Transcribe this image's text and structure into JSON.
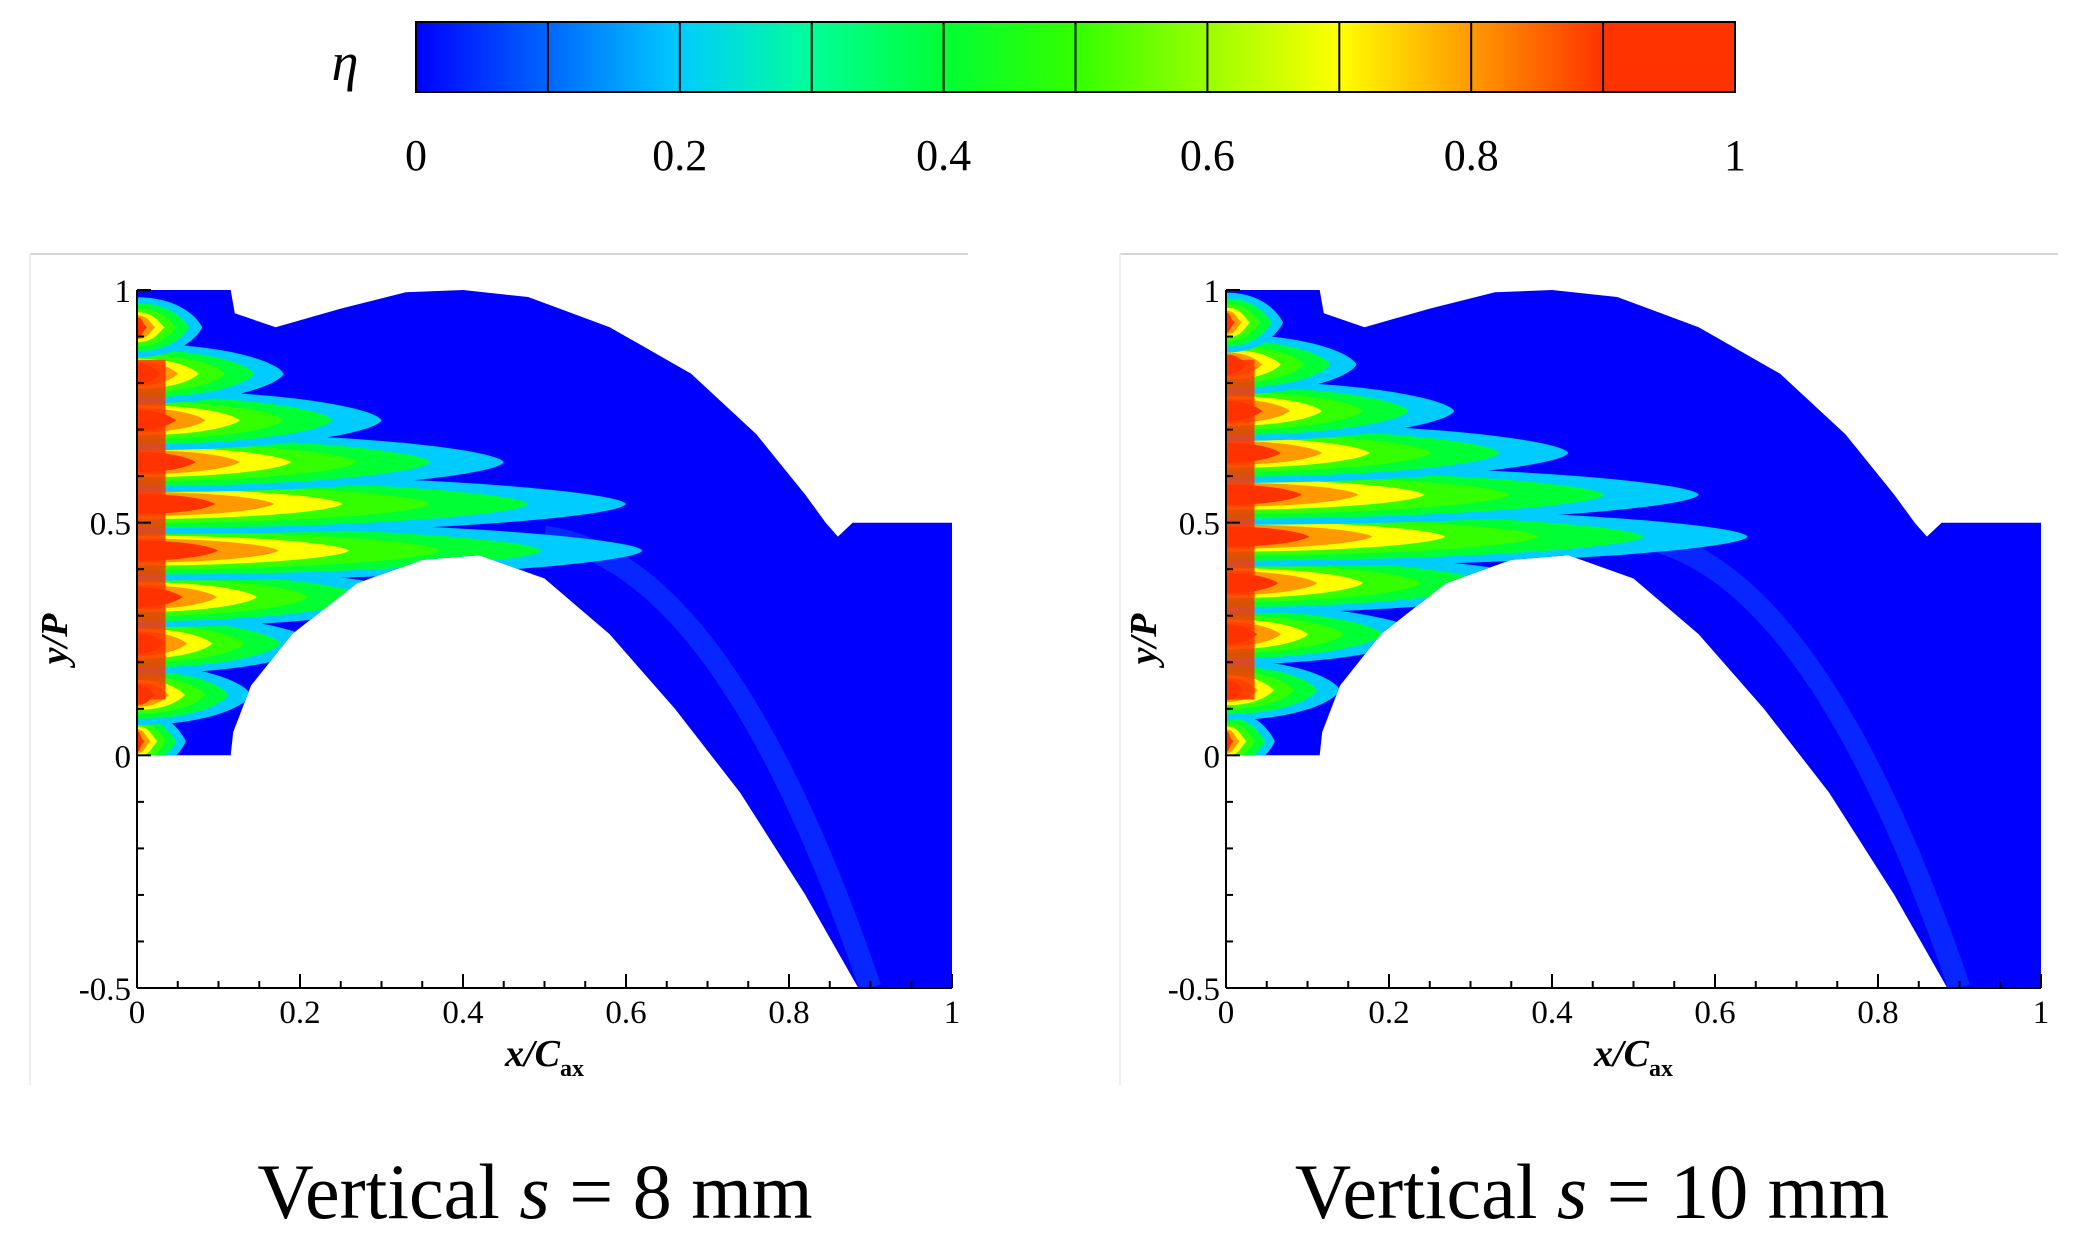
{
  "chart_data": {
    "type": "heatmap",
    "colorbar": {
      "symbol": "η",
      "min": 0,
      "max": 1,
      "levels": 10,
      "tick_values": [
        0,
        0.2,
        0.4,
        0.6,
        0.8,
        1
      ],
      "tick_labels": [
        "0",
        "0.2",
        "0.4",
        "0.6",
        "0.8",
        "1"
      ],
      "colors": [
        "#0000ff",
        "#0066ff",
        "#00ccff",
        "#00ff99",
        "#00ff33",
        "#33ff00",
        "#99ff00",
        "#ffff00",
        "#ff9900",
        "#ff3300"
      ]
    },
    "panels": [
      {
        "caption_pre": "Vertical ",
        "caption_var": "s",
        "caption_post": " = 8 mm",
        "xlabel_main": "x/C",
        "xlabel_sub": "ax",
        "ylabel": "y/P",
        "xlim": [
          0,
          1
        ],
        "ylim": [
          -0.5,
          1
        ],
        "x_ticks": [
          0,
          0.2,
          0.4,
          0.6,
          0.8,
          1
        ],
        "x_tick_labels": [
          "0",
          "0.2",
          "0.4",
          "0.6",
          "0.8",
          "1"
        ],
        "y_ticks": [
          -0.5,
          0,
          0.5,
          1
        ],
        "y_tick_labels": [
          "-0.5",
          "0",
          "0.5",
          "1"
        ],
        "film_rows": [
          0.03,
          0.13,
          0.24,
          0.34,
          0.44,
          0.54,
          0.63,
          0.72,
          0.82,
          0.92
        ],
        "film_reach": [
          0.06,
          0.14,
          0.22,
          0.35,
          0.62,
          0.6,
          0.45,
          0.3,
          0.18,
          0.08
        ]
      },
      {
        "caption_pre": "Vertical ",
        "caption_var": "s",
        "caption_post": " = 10 mm",
        "xlabel_main": "x/C",
        "xlabel_sub": "ax",
        "ylabel": "y/P",
        "xlim": [
          0,
          1
        ],
        "ylim": [
          -0.5,
          1
        ],
        "x_ticks": [
          0,
          0.2,
          0.4,
          0.6,
          0.8,
          1
        ],
        "x_tick_labels": [
          "0",
          "0.2",
          "0.4",
          "0.6",
          "0.8",
          "1"
        ],
        "y_ticks": [
          -0.5,
          0,
          0.5,
          1
        ],
        "y_tick_labels": [
          "-0.5",
          "0",
          "0.5",
          "1"
        ],
        "film_rows": [
          0.03,
          0.14,
          0.26,
          0.37,
          0.47,
          0.56,
          0.65,
          0.74,
          0.84,
          0.93
        ],
        "film_reach": [
          0.06,
          0.14,
          0.24,
          0.4,
          0.64,
          0.58,
          0.42,
          0.28,
          0.16,
          0.07
        ]
      }
    ]
  }
}
